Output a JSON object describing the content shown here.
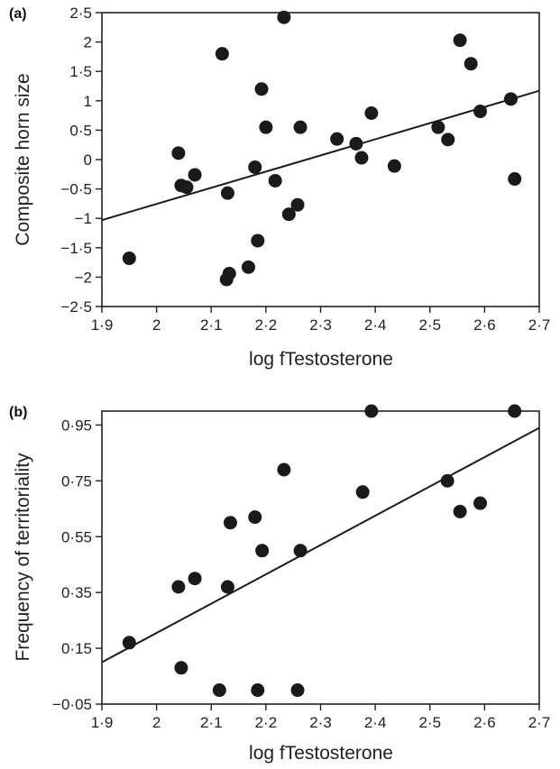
{
  "chart_data": [
    {
      "type": "scatter",
      "panel_label": "(a)",
      "xlabel": "log fTestosterone",
      "ylabel": "Composite horn size",
      "xlim": [
        1.9,
        2.7
      ],
      "ylim": [
        -2.5,
        2.5
      ],
      "x_ticks": [
        1.9,
        2.0,
        2.1,
        2.2,
        2.3,
        2.4,
        2.5,
        2.6,
        2.7
      ],
      "x_tick_labels": [
        "1·9",
        "2",
        "2·1",
        "2·2",
        "2·3",
        "2·4",
        "2·5",
        "2·6",
        "2·7"
      ],
      "y_ticks": [
        2.5,
        2.0,
        1.5,
        1.0,
        0.5,
        0,
        -0.5,
        -1.0,
        -1.5,
        -2.0,
        -2.5
      ],
      "y_tick_labels": [
        "2·5",
        "2",
        "1·5",
        "1",
        "0·5",
        "0",
        "−0·5",
        "−1",
        "−1·5",
        "−2",
        "−2·5"
      ],
      "points": [
        [
          1.95,
          -1.68
        ],
        [
          2.04,
          0.11
        ],
        [
          2.045,
          -0.44
        ],
        [
          2.055,
          -0.47
        ],
        [
          2.07,
          -0.26
        ],
        [
          2.12,
          1.8
        ],
        [
          2.13,
          -0.57
        ],
        [
          2.128,
          -2.04
        ],
        [
          2.133,
          -1.94
        ],
        [
          2.168,
          -1.83
        ],
        [
          2.18,
          -0.13
        ],
        [
          2.185,
          -1.38
        ],
        [
          2.192,
          1.2
        ],
        [
          2.2,
          0.55
        ],
        [
          2.217,
          -0.36
        ],
        [
          2.233,
          2.42
        ],
        [
          2.242,
          -0.93
        ],
        [
          2.258,
          -0.77
        ],
        [
          2.263,
          0.55
        ],
        [
          2.33,
          0.35
        ],
        [
          2.365,
          0.27
        ],
        [
          2.375,
          0.03
        ],
        [
          2.393,
          0.79
        ],
        [
          2.435,
          -0.11
        ],
        [
          2.515,
          0.55
        ],
        [
          2.533,
          0.34
        ],
        [
          2.555,
          2.03
        ],
        [
          2.575,
          1.63
        ],
        [
          2.592,
          0.82
        ],
        [
          2.648,
          1.03
        ],
        [
          2.655,
          -0.33
        ]
      ],
      "fit_line": [
        [
          1.9,
          -1.03
        ],
        [
          2.7,
          1.17
        ]
      ]
    },
    {
      "type": "scatter",
      "panel_label": "(b)",
      "xlabel": "log fTestosterone",
      "ylabel": "Frequency of territoriality",
      "xlim": [
        1.9,
        2.7
      ],
      "ylim": [
        -0.05,
        1.0
      ],
      "x_ticks": [
        1.9,
        2.0,
        2.1,
        2.2,
        2.3,
        2.4,
        2.5,
        2.6,
        2.7
      ],
      "x_tick_labels": [
        "1·9",
        "2",
        "2·1",
        "2·2",
        "2·3",
        "2·4",
        "2·5",
        "2·6",
        "2·7"
      ],
      "y_ticks": [
        0.95,
        0.75,
        0.55,
        0.35,
        0.15,
        -0.05
      ],
      "y_tick_labels": [
        "0·95",
        "0·75",
        "0·55",
        "0·35",
        "0·15",
        "−0·05"
      ],
      "points": [
        [
          1.95,
          0.17
        ],
        [
          2.04,
          0.37
        ],
        [
          2.045,
          0.08
        ],
        [
          2.07,
          0.4
        ],
        [
          2.115,
          0.0
        ],
        [
          2.13,
          0.37
        ],
        [
          2.135,
          0.6
        ],
        [
          2.18,
          0.62
        ],
        [
          2.185,
          0.0
        ],
        [
          2.193,
          0.5
        ],
        [
          2.233,
          0.79
        ],
        [
          2.258,
          0.0
        ],
        [
          2.263,
          0.5
        ],
        [
          2.377,
          0.71
        ],
        [
          2.393,
          1.0
        ],
        [
          2.532,
          0.75
        ],
        [
          2.555,
          0.64
        ],
        [
          2.592,
          0.67
        ],
        [
          2.655,
          1.0
        ]
      ],
      "fit_line": [
        [
          1.9,
          0.1
        ],
        [
          2.7,
          0.94
        ]
      ]
    }
  ]
}
